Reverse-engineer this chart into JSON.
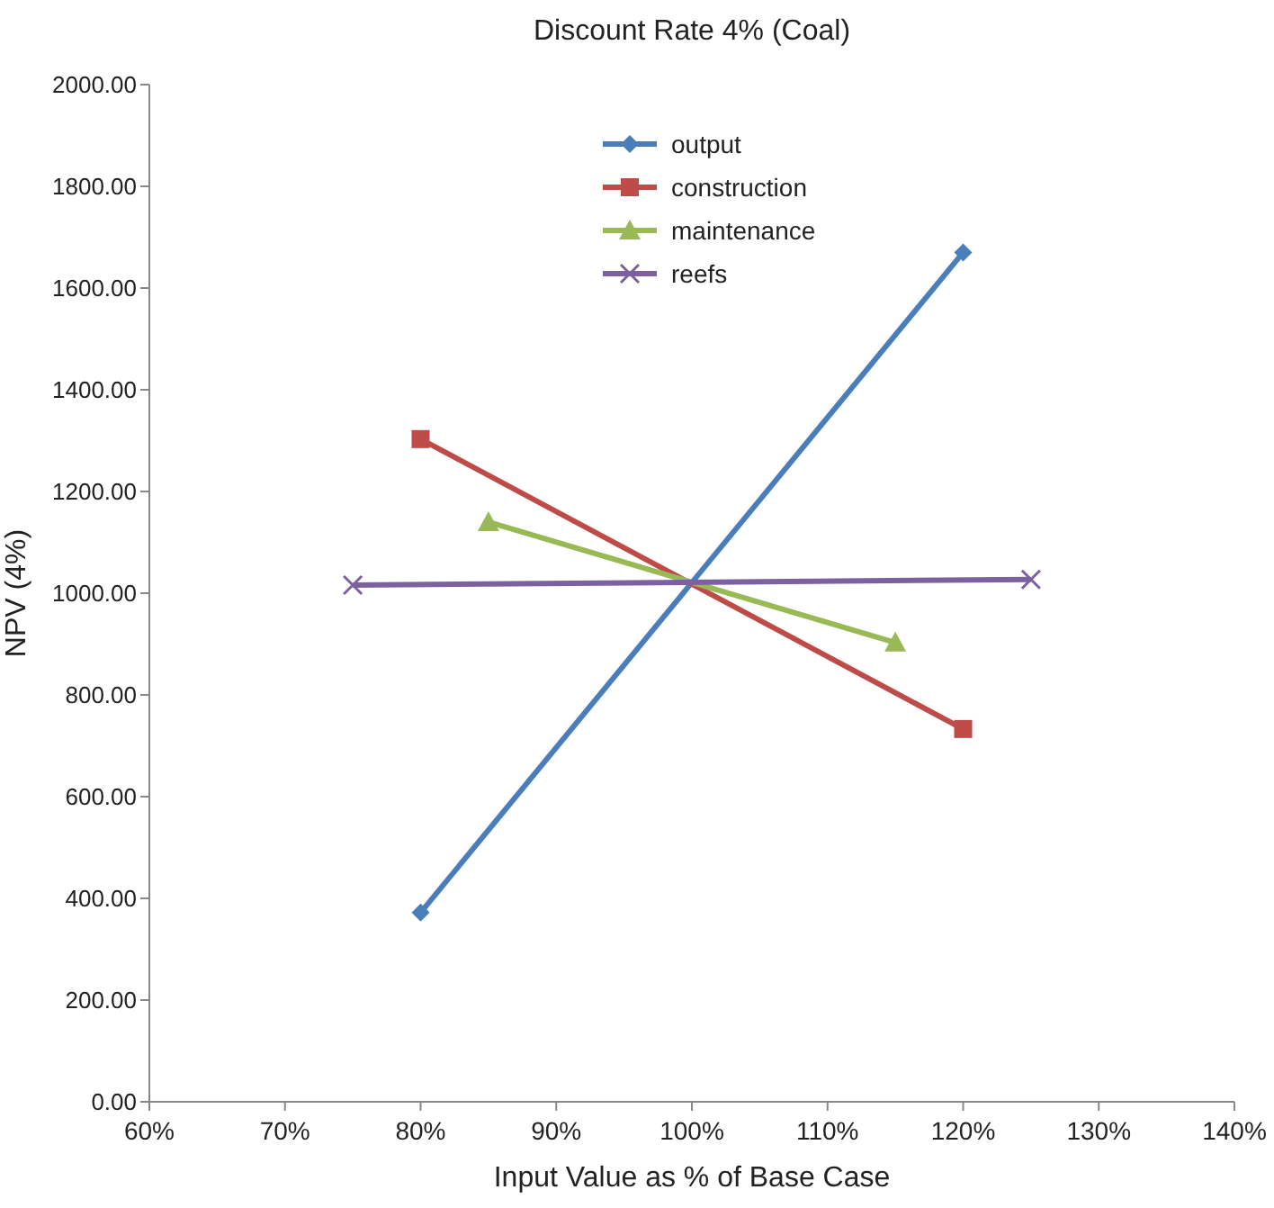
{
  "chart_data": {
    "type": "line",
    "title": "Discount Rate 4% (Coal)",
    "xlabel": "Input Value as % of Base Case",
    "ylabel": "NPV (4%)",
    "xlim": [
      60,
      140
    ],
    "xticks": [
      {
        "value": 60,
        "label": "60%"
      },
      {
        "value": 70,
        "label": "70%"
      },
      {
        "value": 80,
        "label": "80%"
      },
      {
        "value": 90,
        "label": "90%"
      },
      {
        "value": 100,
        "label": "100%"
      },
      {
        "value": 110,
        "label": "110%"
      },
      {
        "value": 120,
        "label": "120%"
      },
      {
        "value": 130,
        "label": "130%"
      },
      {
        "value": 140,
        "label": "140%"
      }
    ],
    "ylim": [
      0,
      2000
    ],
    "yticks": [
      {
        "value": 0,
        "label": "0.00"
      },
      {
        "value": 200,
        "label": "200.00"
      },
      {
        "value": 400,
        "label": "400.00"
      },
      {
        "value": 600,
        "label": "600.00"
      },
      {
        "value": 800,
        "label": "800.00"
      },
      {
        "value": 1000,
        "label": "1000.00"
      },
      {
        "value": 1200,
        "label": "1200.00"
      },
      {
        "value": 1400,
        "label": "1400.00"
      },
      {
        "value": 1600,
        "label": "1600.00"
      },
      {
        "value": 1800,
        "label": "1800.00"
      },
      {
        "value": 2000,
        "label": "2000.00"
      }
    ],
    "grid": false,
    "legend": "top",
    "series": [
      {
        "name": "output",
        "color": "#4a7ebb",
        "marker": "diamond",
        "x": [
          80,
          120
        ],
        "values": [
          372,
          1670
        ]
      },
      {
        "name": "construction",
        "color": "#be4b48",
        "marker": "square",
        "x": [
          80,
          120
        ],
        "values": [
          1303,
          733
        ]
      },
      {
        "name": "maintenance",
        "color": "#98b954",
        "marker": "triangle",
        "x": [
          85,
          115
        ],
        "values": [
          1140,
          903
        ]
      },
      {
        "name": "reefs",
        "color": "#7d60a0",
        "marker": "cross",
        "x": [
          75,
          125
        ],
        "values": [
          1016,
          1027
        ]
      }
    ]
  }
}
